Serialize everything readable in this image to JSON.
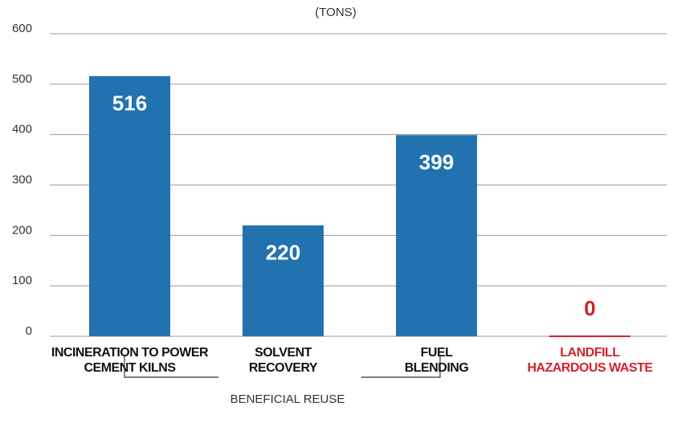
{
  "chart_data": {
    "type": "bar",
    "subtitle": "(TONS)",
    "categories": [
      "INCINERATION TO POWER\nCEMENT KILNS",
      "SOLVENT\nRECOVERY",
      "FUEL\nBLENDING",
      "LANDFILL\nHAZARDOUS WASTE"
    ],
    "values": [
      516,
      220,
      399,
      0
    ],
    "colors": [
      "#2372b0",
      "#2372b0",
      "#2372b0",
      "#d2232a"
    ],
    "label_colors": [
      "#111111",
      "#111111",
      "#111111",
      "#d2232a"
    ],
    "ylim": [
      0,
      600
    ],
    "yticks": [
      0,
      100,
      200,
      300,
      400,
      500,
      600
    ],
    "grid": true,
    "annotation": "BENEFICIAL REUSE"
  }
}
